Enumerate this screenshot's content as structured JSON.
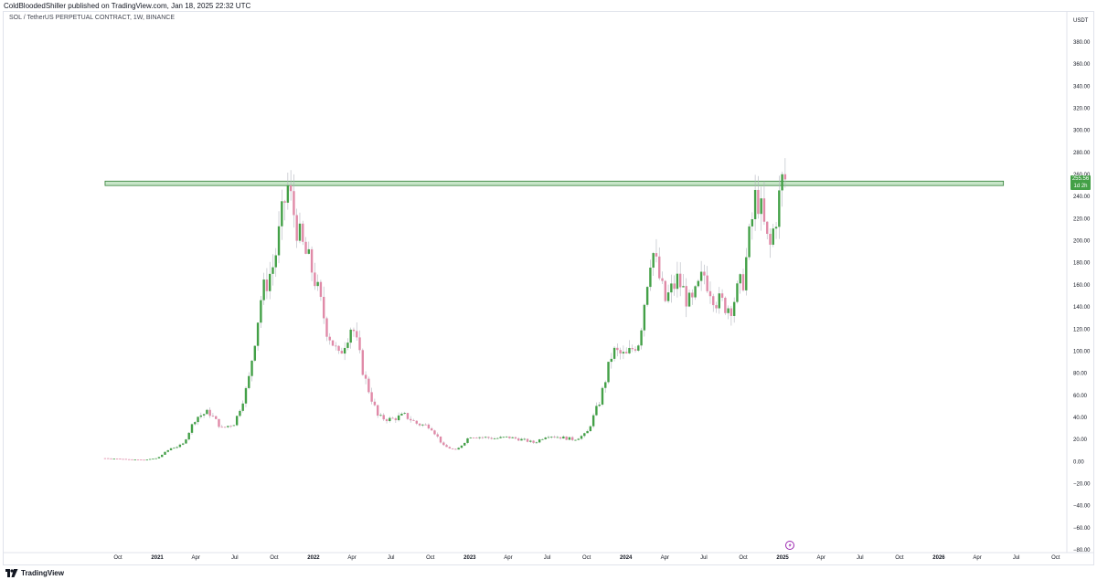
{
  "header": {
    "publisher": "ColdBloodedShiller published on TradingView.com, Jan 18, 2025 22:32 UTC"
  },
  "symbol_label": "SOL / TetherUS PERPETUAL CONTRACT, 1W, BINANCE",
  "footer": {
    "brand": "TradingView",
    "logo_icon": "tradingview-logo-icon"
  },
  "colors": {
    "up": "#43a047",
    "down": "#e08aa8",
    "wick": "#b2b5be",
    "zone_fill": "#c8e6c9",
    "zone_stroke": "#2e7d32",
    "badge": "#43a047"
  },
  "price_badge": {
    "price": "255.56",
    "countdown": "1d 2h"
  },
  "event_icon": "flash-icon",
  "chart_data": {
    "type": "candlestick",
    "currency": "USDT",
    "ylim": [
      -80,
      400
    ],
    "y_ticks": [
      "380.00",
      "360.00",
      "340.00",
      "320.00",
      "300.00",
      "280.00",
      "260.00",
      "240.00",
      "220.00",
      "200.00",
      "180.00",
      "160.00",
      "140.00",
      "120.00",
      "100.00",
      "80.00",
      "60.00",
      "40.00",
      "20.00",
      "0.00",
      "−20.00",
      "−40.00",
      "−60.00",
      "−80.00"
    ],
    "x_ticks": [
      {
        "label": "Oct",
        "date": "2020-10"
      },
      {
        "label": "2021",
        "date": "2021-01"
      },
      {
        "label": "Apr",
        "date": "2021-04"
      },
      {
        "label": "Jul",
        "date": "2021-07"
      },
      {
        "label": "Oct",
        "date": "2021-10"
      },
      {
        "label": "2022",
        "date": "2022-01"
      },
      {
        "label": "Apr",
        "date": "2022-04"
      },
      {
        "label": "Jul",
        "date": "2022-07"
      },
      {
        "label": "Oct",
        "date": "2022-10"
      },
      {
        "label": "2023",
        "date": "2023-01"
      },
      {
        "label": "Apr",
        "date": "2023-04"
      },
      {
        "label": "Jul",
        "date": "2023-07"
      },
      {
        "label": "Oct",
        "date": "2023-10"
      },
      {
        "label": "2024",
        "date": "2024-01"
      },
      {
        "label": "Apr",
        "date": "2024-04"
      },
      {
        "label": "Jul",
        "date": "2024-07"
      },
      {
        "label": "Oct",
        "date": "2024-10"
      },
      {
        "label": "2025",
        "date": "2025-01"
      },
      {
        "label": "Apr",
        "date": "2025-04"
      },
      {
        "label": "Jul",
        "date": "2025-07"
      },
      {
        "label": "Oct",
        "date": "2025-10"
      },
      {
        "label": "2026",
        "date": "2026-01"
      },
      {
        "label": "Apr",
        "date": "2026-04"
      },
      {
        "label": "Jul",
        "date": "2026-07"
      },
      {
        "label": "Oct",
        "date": "2026-10"
      }
    ],
    "resistance_zone": {
      "low": 250,
      "high": 254,
      "from": "2020-09",
      "to": "2026-06"
    },
    "close_path": [
      [
        "2020-09",
        3
      ],
      [
        "2020-11",
        2
      ],
      [
        "2020-12",
        1.5
      ],
      [
        "2021-01",
        3
      ],
      [
        "2021-02",
        12
      ],
      [
        "2021-03",
        15
      ],
      [
        "2021-04",
        40
      ],
      [
        "2021-05",
        45
      ],
      [
        "2021-06",
        30
      ],
      [
        "2021-07",
        35
      ],
      [
        "2021-08",
        70
      ],
      [
        "2021-09",
        150
      ],
      [
        "2021-10",
        180
      ],
      [
        "2021-11",
        250
      ],
      [
        "2021-12",
        200
      ],
      [
        "2022-01",
        170
      ],
      [
        "2022-02",
        120
      ],
      [
        "2022-03",
        95
      ],
      [
        "2022-04",
        125
      ],
      [
        "2022-05",
        75
      ],
      [
        "2022-06",
        40
      ],
      [
        "2022-07",
        38
      ],
      [
        "2022-08",
        42
      ],
      [
        "2022-09",
        34
      ],
      [
        "2022-10",
        32
      ],
      [
        "2022-11",
        14
      ],
      [
        "2022-12",
        10
      ],
      [
        "2023-01",
        23
      ],
      [
        "2023-02",
        22
      ],
      [
        "2023-03",
        21
      ],
      [
        "2023-04",
        22
      ],
      [
        "2023-05",
        20
      ],
      [
        "2023-06",
        17
      ],
      [
        "2023-07",
        24
      ],
      [
        "2023-08",
        22
      ],
      [
        "2023-09",
        20
      ],
      [
        "2023-10",
        25
      ],
      [
        "2023-11",
        55
      ],
      [
        "2023-12",
        100
      ],
      [
        "2024-01",
        95
      ],
      [
        "2024-02",
        110
      ],
      [
        "2024-03",
        195
      ],
      [
        "2024-04",
        145
      ],
      [
        "2024-05",
        165
      ],
      [
        "2024-06",
        140
      ],
      [
        "2024-07",
        170
      ],
      [
        "2024-08",
        145
      ],
      [
        "2024-09",
        140
      ],
      [
        "2024-10",
        165
      ],
      [
        "2024-11",
        245
      ],
      [
        "2024-12",
        190
      ],
      [
        "2025-01",
        255.56
      ]
    ]
  }
}
